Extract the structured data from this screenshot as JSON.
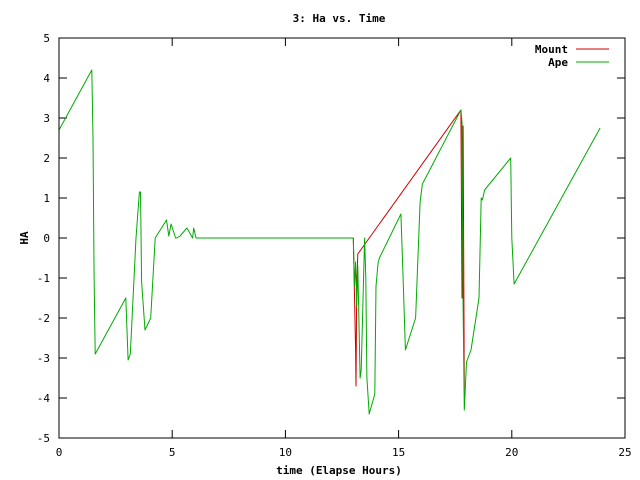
{
  "chart_data": {
    "type": "line",
    "title": "3: Ha vs. Time",
    "xlabel": "time (Elapse Hours)",
    "ylabel": "HA",
    "xlim": [
      0,
      25
    ],
    "ylim": [
      -5,
      5
    ],
    "x_ticks": [
      0,
      5,
      10,
      15,
      20,
      25
    ],
    "y_ticks": [
      -5,
      -4,
      -3,
      -2,
      -1,
      0,
      1,
      2,
      3,
      4,
      5
    ],
    "grid": false,
    "legend_position": "top-right",
    "series": [
      {
        "name": "Mount",
        "color": "#cc0000",
        "x": [
          13.0,
          13.1,
          13.12,
          13.15,
          13.2,
          17.75,
          17.8,
          17.85,
          17.9
        ],
        "y": [
          0,
          -2.8,
          -3.7,
          -1.2,
          -0.4,
          3.2,
          -1.5,
          2.8,
          -3.8
        ]
      },
      {
        "name": "Ape",
        "color": "#00aa00",
        "x": [
          0,
          1.45,
          1.5,
          1.55,
          1.6,
          2.95,
          3.05,
          3.15,
          3.4,
          3.55,
          3.6,
          3.65,
          3.8,
          4.05,
          4.25,
          4.75,
          4.85,
          4.95,
          5.15,
          5.2,
          5.35,
          5.65,
          5.9,
          5.95,
          6.05,
          8.0,
          13.0,
          13.05,
          13.1,
          13.15,
          13.2,
          13.3,
          13.35,
          13.5,
          13.55,
          13.6,
          13.7,
          13.95,
          14.0,
          14.1,
          14.15,
          15.1,
          15.2,
          15.3,
          15.75,
          15.95,
          16.05,
          17.75,
          17.8,
          17.85,
          17.9,
          18.0,
          18.2,
          18.55,
          18.65,
          18.7,
          18.8,
          19.95,
          20.0,
          20.1,
          23.9
        ],
        "y": [
          2.7,
          4.2,
          2.5,
          -1.0,
          -2.9,
          -1.5,
          -3.05,
          -2.9,
          0,
          1.15,
          1.15,
          -1.1,
          -2.3,
          -2.0,
          0,
          0.45,
          0.05,
          0.35,
          0,
          0,
          0.05,
          0.25,
          0,
          0.25,
          0,
          0,
          0,
          -1.2,
          -0.6,
          -1.7,
          -0.7,
          -3.5,
          -3.3,
          0,
          -1.0,
          -3.5,
          -4.4,
          -3.9,
          -1.2,
          -0.6,
          -0.5,
          0.6,
          -1.0,
          -2.8,
          -2.0,
          0.9,
          1.35,
          3.2,
          2.9,
          -1.7,
          -4.3,
          -3.1,
          -2.8,
          -1.5,
          1.0,
          0.95,
          1.2,
          2.0,
          0,
          -1.15,
          2.75
        ]
      }
    ]
  }
}
